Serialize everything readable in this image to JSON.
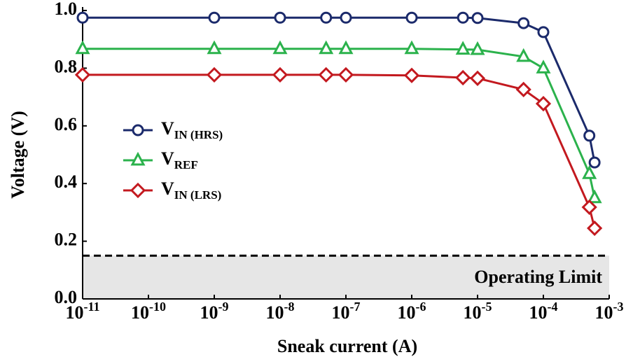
{
  "chart_data": {
    "type": "line",
    "x_label": "Sneak current (A)",
    "y_label": "Voltage (V)",
    "x": [
      1e-11,
      1e-09,
      1e-08,
      5e-08,
      1e-07,
      1e-06,
      6e-06,
      1e-05,
      5e-05,
      0.0001,
      0.0005,
      0.0006
    ],
    "series": [
      {
        "name": "V",
        "subscript": "IN (HRS)",
        "color": "#1b2a6b",
        "marker": "circle",
        "values": [
          0.975,
          0.975,
          0.975,
          0.975,
          0.975,
          0.975,
          0.975,
          0.974,
          0.956,
          0.925,
          0.566,
          0.473
        ]
      },
      {
        "name": "V",
        "subscript": "REF",
        "color": "#2bb24c",
        "marker": "triangle",
        "values": [
          0.867,
          0.867,
          0.867,
          0.867,
          0.867,
          0.867,
          0.865,
          0.864,
          0.84,
          0.8,
          0.434,
          0.35
        ]
      },
      {
        "name": "V",
        "subscript": "IN (LRS)",
        "color": "#c3191f",
        "marker": "diamond",
        "values": [
          0.777,
          0.777,
          0.777,
          0.777,
          0.777,
          0.775,
          0.767,
          0.765,
          0.726,
          0.677,
          0.318,
          0.245
        ]
      }
    ],
    "x_scale": "log",
    "xlim": [
      1e-11,
      0.001
    ],
    "xticks": [
      {
        "value": 1e-11,
        "label": "10",
        "exponent": "-11"
      },
      {
        "value": 1e-10,
        "label": "10",
        "exponent": "-10"
      },
      {
        "value": 1e-09,
        "label": "10",
        "exponent": "-9"
      },
      {
        "value": 1e-08,
        "label": "10",
        "exponent": "-8"
      },
      {
        "value": 1e-07,
        "label": "10",
        "exponent": "-7"
      },
      {
        "value": 1e-06,
        "label": "10",
        "exponent": "-6"
      },
      {
        "value": 1e-05,
        "label": "10",
        "exponent": "-5"
      },
      {
        "value": 0.0001,
        "label": "10",
        "exponent": "-4"
      },
      {
        "value": 0.001,
        "label": "10",
        "exponent": "-3"
      }
    ],
    "ylim": [
      0,
      1.0
    ],
    "yticks": [
      {
        "value": 0,
        "label": "0.0"
      },
      0.2,
      0.4,
      0.6,
      0.8,
      {
        "value": 1.0,
        "label": "1.0"
      }
    ],
    "limit": {
      "value": 0.15,
      "label": "Operating Limit",
      "color": "#e6e6e6"
    },
    "legend": "left"
  }
}
